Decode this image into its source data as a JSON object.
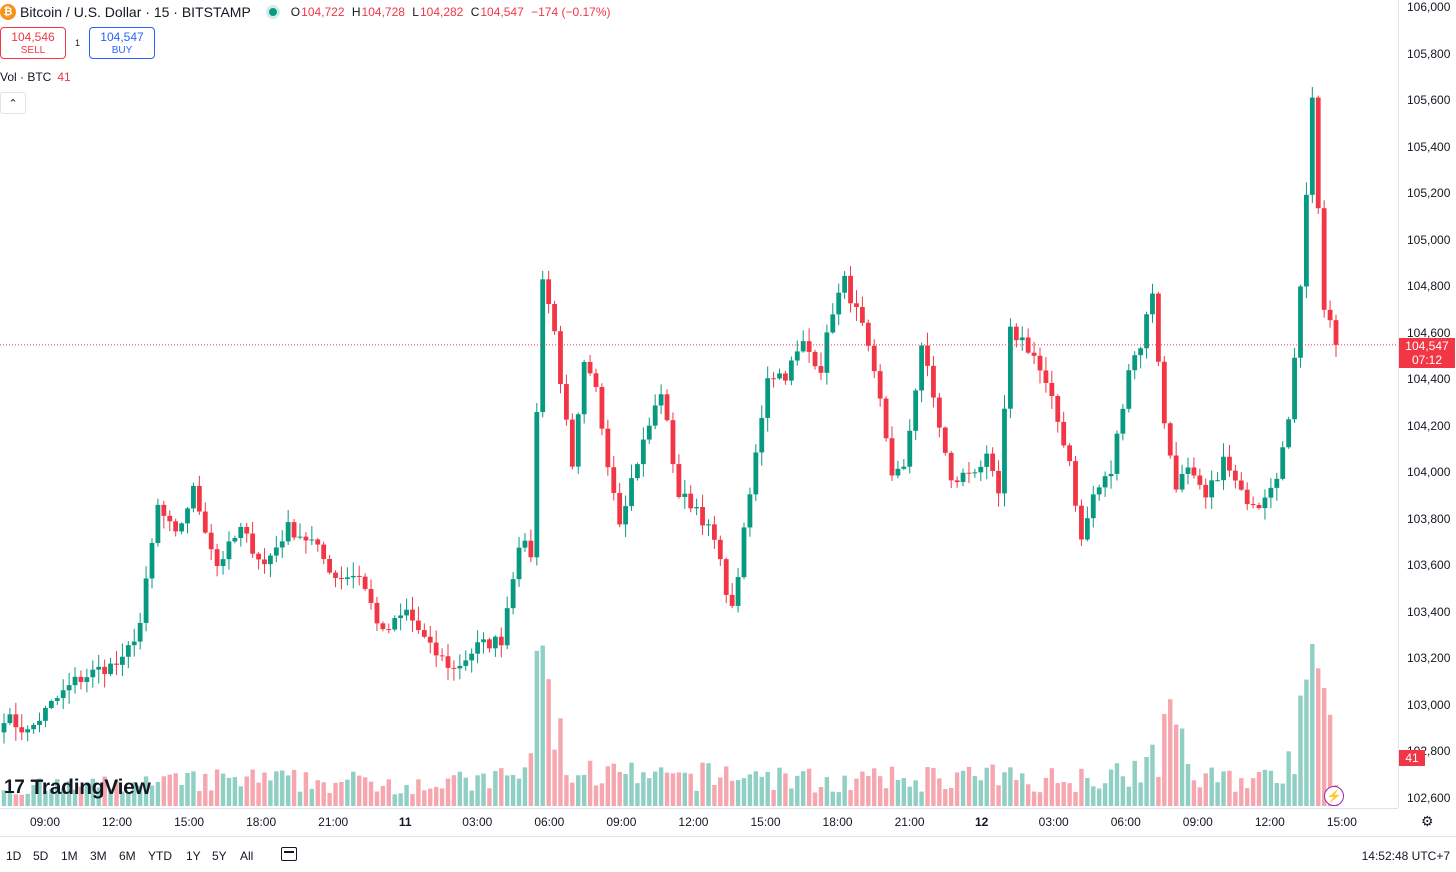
{
  "legend": {
    "icon": "bitcoin-icon",
    "title": "Bitcoin / U.S. Dollar · 15 · BITSTAMP",
    "open_label": "O",
    "open": "104,722",
    "high_label": "H",
    "high": "104,728",
    "low_label": "L",
    "low": "104,282",
    "close_label": "C",
    "close": "104,547",
    "change": "−174 (−0.17%)"
  },
  "trade": {
    "sell_price": "104,546",
    "sell_label": "SELL",
    "spread": "1",
    "buy_price": "104,547",
    "buy_label": "BUY"
  },
  "volume_legend": {
    "label": "Vol · BTC",
    "value": "41"
  },
  "collapse_icon": "chevron-up-icon",
  "logo_text": "TradingView",
  "price_badge": {
    "price": "104,547",
    "countdown": "07:12"
  },
  "volume_badge": "41",
  "colors": {
    "up": "#089981",
    "down": "#f23645",
    "vol_up": "#8fcfc4",
    "vol_down": "#f5a6ae"
  },
  "chart_data": {
    "type": "candlestick",
    "title": "Bitcoin / U.S. Dollar · 15 · BITSTAMP",
    "ylim": [
      102600,
      106000
    ],
    "y_ticks": [
      "106,000",
      "105,800",
      "105,600",
      "105,400",
      "105,200",
      "105,000",
      "104,800",
      "104,600",
      "104,400",
      "104,200",
      "104,000",
      "103,800",
      "103,600",
      "103,400",
      "103,200",
      "103,000",
      "102,800",
      "102,600"
    ],
    "x_ticks": [
      {
        "label": "09:00",
        "bold": false
      },
      {
        "label": "12:00",
        "bold": false
      },
      {
        "label": "15:00",
        "bold": false
      },
      {
        "label": "18:00",
        "bold": false
      },
      {
        "label": "21:00",
        "bold": false
      },
      {
        "label": "11",
        "bold": true
      },
      {
        "label": "03:00",
        "bold": false
      },
      {
        "label": "06:00",
        "bold": false
      },
      {
        "label": "09:00",
        "bold": false
      },
      {
        "label": "12:00",
        "bold": false
      },
      {
        "label": "15:00",
        "bold": false
      },
      {
        "label": "18:00",
        "bold": false
      },
      {
        "label": "21:00",
        "bold": false
      },
      {
        "label": "12",
        "bold": true
      },
      {
        "label": "03:00",
        "bold": false
      },
      {
        "label": "06:00",
        "bold": false
      },
      {
        "label": "09:00",
        "bold": false
      },
      {
        "label": "12:00",
        "bold": false
      },
      {
        "label": "15:00",
        "bold": false
      }
    ],
    "last_price": 104547,
    "anchors": [
      [
        0,
        102950
      ],
      [
        4,
        102880
      ],
      [
        8,
        103000
      ],
      [
        12,
        103100
      ],
      [
        16,
        103150
      ],
      [
        20,
        103180
      ],
      [
        23,
        103350
      ],
      [
        26,
        103850
      ],
      [
        29,
        103720
      ],
      [
        32,
        103920
      ],
      [
        36,
        103600
      ],
      [
        40,
        103750
      ],
      [
        44,
        103600
      ],
      [
        48,
        103760
      ],
      [
        52,
        103700
      ],
      [
        56,
        103550
      ],
      [
        60,
        103560
      ],
      [
        64,
        103300
      ],
      [
        68,
        103400
      ],
      [
        72,
        103240
      ],
      [
        76,
        103150
      ],
      [
        80,
        103250
      ],
      [
        84,
        103280
      ],
      [
        87,
        103700
      ],
      [
        89,
        103650
      ],
      [
        91,
        104850
      ],
      [
        93,
        104600
      ],
      [
        96,
        104000
      ],
      [
        98,
        104450
      ],
      [
        100,
        104350
      ],
      [
        102,
        104050
      ],
      [
        104,
        103800
      ],
      [
        107,
        104050
      ],
      [
        111,
        104350
      ],
      [
        114,
        103900
      ],
      [
        117,
        103850
      ],
      [
        120,
        103700
      ],
      [
        123,
        103400
      ],
      [
        126,
        103900
      ],
      [
        129,
        104420
      ],
      [
        132,
        104420
      ],
      [
        135,
        104550
      ],
      [
        138,
        104450
      ],
      [
        140,
        104700
      ],
      [
        142,
        104820
      ],
      [
        145,
        104620
      ],
      [
        148,
        104300
      ],
      [
        150,
        104000
      ],
      [
        152,
        104000
      ],
      [
        155,
        104550
      ],
      [
        158,
        104200
      ],
      [
        160,
        103950
      ],
      [
        163,
        104000
      ],
      [
        166,
        104050
      ],
      [
        168,
        103900
      ],
      [
        170,
        104600
      ],
      [
        172,
        104570
      ],
      [
        174,
        104500
      ],
      [
        177,
        104300
      ],
      [
        180,
        104050
      ],
      [
        182,
        103700
      ],
      [
        184,
        103900
      ],
      [
        187,
        104000
      ],
      [
        190,
        104450
      ],
      [
        192,
        104550
      ],
      [
        194,
        104780
      ],
      [
        196,
        104200
      ],
      [
        198,
        103950
      ],
      [
        200,
        104000
      ],
      [
        203,
        103880
      ],
      [
        206,
        104050
      ],
      [
        209,
        103900
      ],
      [
        212,
        103870
      ],
      [
        215,
        104000
      ],
      [
        217,
        104200
      ],
      [
        219,
        104820
      ],
      [
        221,
        105600
      ],
      [
        223,
        104700
      ],
      [
        225,
        104547
      ]
    ],
    "volume_ratio": [
      [
        0,
        0.12
      ],
      [
        20,
        0.14
      ],
      [
        40,
        0.18
      ],
      [
        60,
        0.16
      ],
      [
        80,
        0.16
      ],
      [
        88,
        0.22
      ],
      [
        91,
        1.0
      ],
      [
        95,
        0.25
      ],
      [
        110,
        0.18
      ],
      [
        125,
        0.22
      ],
      [
        140,
        0.16
      ],
      [
        160,
        0.2
      ],
      [
        180,
        0.18
      ],
      [
        195,
        0.3
      ],
      [
        196,
        0.9
      ],
      [
        200,
        0.2
      ],
      [
        215,
        0.18
      ],
      [
        220,
        0.6
      ],
      [
        221,
        1.2
      ],
      [
        225,
        0.28
      ]
    ]
  },
  "ranges": [
    "1D",
    "5D",
    "1M",
    "3M",
    "6M",
    "YTD",
    "1Y",
    "5Y",
    "All"
  ],
  "calendar_icon": "calendar-range-icon",
  "settings_icon": "gear-icon",
  "clock": "14:52:48 UTC+7"
}
